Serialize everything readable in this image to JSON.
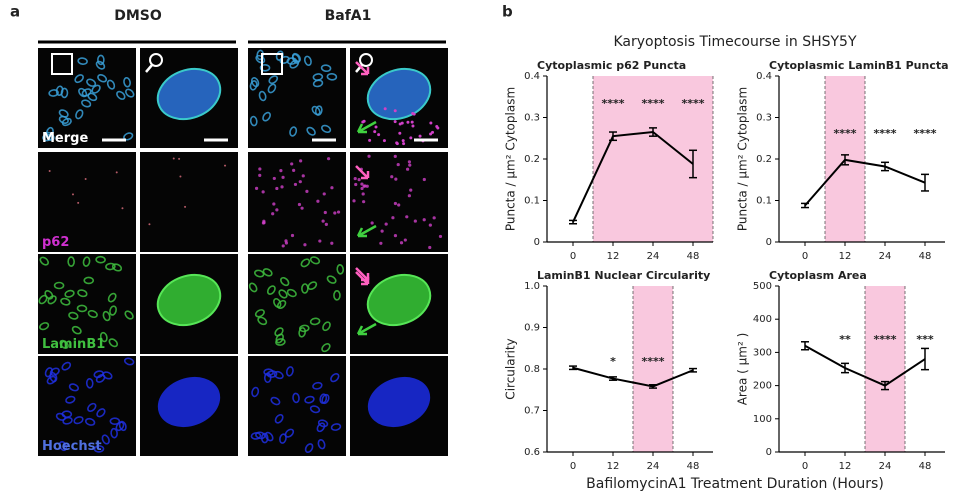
{
  "panel_a": {
    "label": "a",
    "columns": [
      "DMSO",
      "BafA1"
    ],
    "rows": [
      "Merge",
      "p62",
      "LaminB1",
      "Hoechst"
    ]
  },
  "panel_b": {
    "label": "b",
    "title": "Karyoptosis Timecourse in SHSY5Y",
    "xlabel": "BafilomycinA1 Treatment Duration (Hours)"
  },
  "chart_data": [
    {
      "type": "line",
      "title": "Cytoplasmic p62 Puncta",
      "ylabel": "Puncta / μm² Cytoplasm",
      "categories": [
        "0",
        "12",
        "24",
        "48"
      ],
      "values": [
        0.048,
        0.255,
        0.265,
        0.188
      ],
      "errors": [
        0.004,
        0.01,
        0.01,
        0.033
      ],
      "annotations": [
        null,
        "****",
        "****",
        "****"
      ],
      "color": "#000000",
      "highlight": [
        1,
        3
      ],
      "highlight_color": "#f9c8de",
      "ylim": [
        0,
        0.4
      ],
      "yticks": [
        0,
        0.1,
        0.2,
        0.3,
        0.4
      ]
    },
    {
      "type": "line",
      "title": "Cytoplasmic LaminB1 Puncta",
      "ylabel": "Puncta / μm² Cytoplasm",
      "categories": [
        "0",
        "12",
        "24",
        "48"
      ],
      "values": [
        0.088,
        0.198,
        0.182,
        0.143
      ],
      "errors": [
        0.005,
        0.012,
        0.01,
        0.02
      ],
      "annotations": [
        null,
        "****",
        "****",
        "****"
      ],
      "color": "#000000",
      "highlight": [
        1,
        1
      ],
      "highlight_color": "#f9c8de",
      "ylim": [
        0,
        0.4
      ],
      "yticks": [
        0,
        0.1,
        0.2,
        0.3,
        0.4
      ]
    },
    {
      "type": "line",
      "title": "LaminB1 Nuclear Circularity",
      "ylabel": "Circularity",
      "categories": [
        "0",
        "12",
        "24",
        "48"
      ],
      "values": [
        0.803,
        0.777,
        0.758,
        0.797
      ],
      "errors": [
        0.004,
        0.004,
        0.004,
        0.004
      ],
      "annotations": [
        null,
        "*",
        "****",
        null
      ],
      "color": "#000000",
      "highlight": [
        2,
        2
      ],
      "highlight_color": "#f9c8de",
      "ylim": [
        0.6,
        1
      ],
      "yticks": [
        0.6,
        0.7,
        0.8,
        0.9,
        {
          "value": 1,
          "label": "1.0"
        }
      ]
    },
    {
      "type": "line",
      "title": "Cytoplasm Area",
      "ylabel": "Area ( μm² )",
      "categories": [
        "0",
        "12",
        "24",
        "48"
      ],
      "values": [
        320,
        253,
        200,
        280
      ],
      "errors": [
        12,
        14,
        12,
        32
      ],
      "annotations": [
        null,
        "**",
        "****",
        "***"
      ],
      "color": "#000000",
      "highlight": [
        2,
        2
      ],
      "highlight_color": "#f9c8de",
      "ylim": [
        0,
        500
      ],
      "yticks": [
        0,
        100,
        200,
        300,
        400,
        500
      ]
    }
  ]
}
